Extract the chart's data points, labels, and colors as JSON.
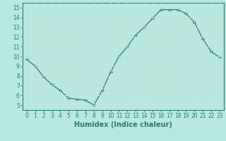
{
  "x": [
    0,
    1,
    2,
    3,
    4,
    5,
    6,
    7,
    8,
    9,
    10,
    11,
    12,
    13,
    14,
    15,
    16,
    17,
    18,
    19,
    20,
    21,
    22,
    23
  ],
  "y": [
    9.7,
    9.0,
    7.9,
    7.1,
    6.5,
    5.7,
    5.6,
    5.5,
    5.0,
    6.5,
    8.4,
    10.0,
    11.0,
    12.2,
    13.0,
    13.9,
    14.8,
    14.8,
    14.8,
    14.4,
    13.5,
    11.8,
    10.5,
    9.9
  ],
  "line_color": "#2e7d6e",
  "marker": "D",
  "marker_size": 2.0,
  "bg_color": "#b8e8e0",
  "grid_color": "#c8ddd8",
  "xlabel": "Humidex (Indice chaleur)",
  "xlim": [
    -0.5,
    23.5
  ],
  "ylim": [
    4.5,
    15.5
  ],
  "yticks": [
    5,
    6,
    7,
    8,
    9,
    10,
    11,
    12,
    13,
    14,
    15
  ],
  "xticks": [
    0,
    1,
    2,
    3,
    4,
    5,
    6,
    7,
    8,
    9,
    10,
    11,
    12,
    13,
    14,
    15,
    16,
    17,
    18,
    19,
    20,
    21,
    22,
    23
  ],
  "tick_fontsize": 5.5,
  "xlabel_fontsize": 7.0
}
